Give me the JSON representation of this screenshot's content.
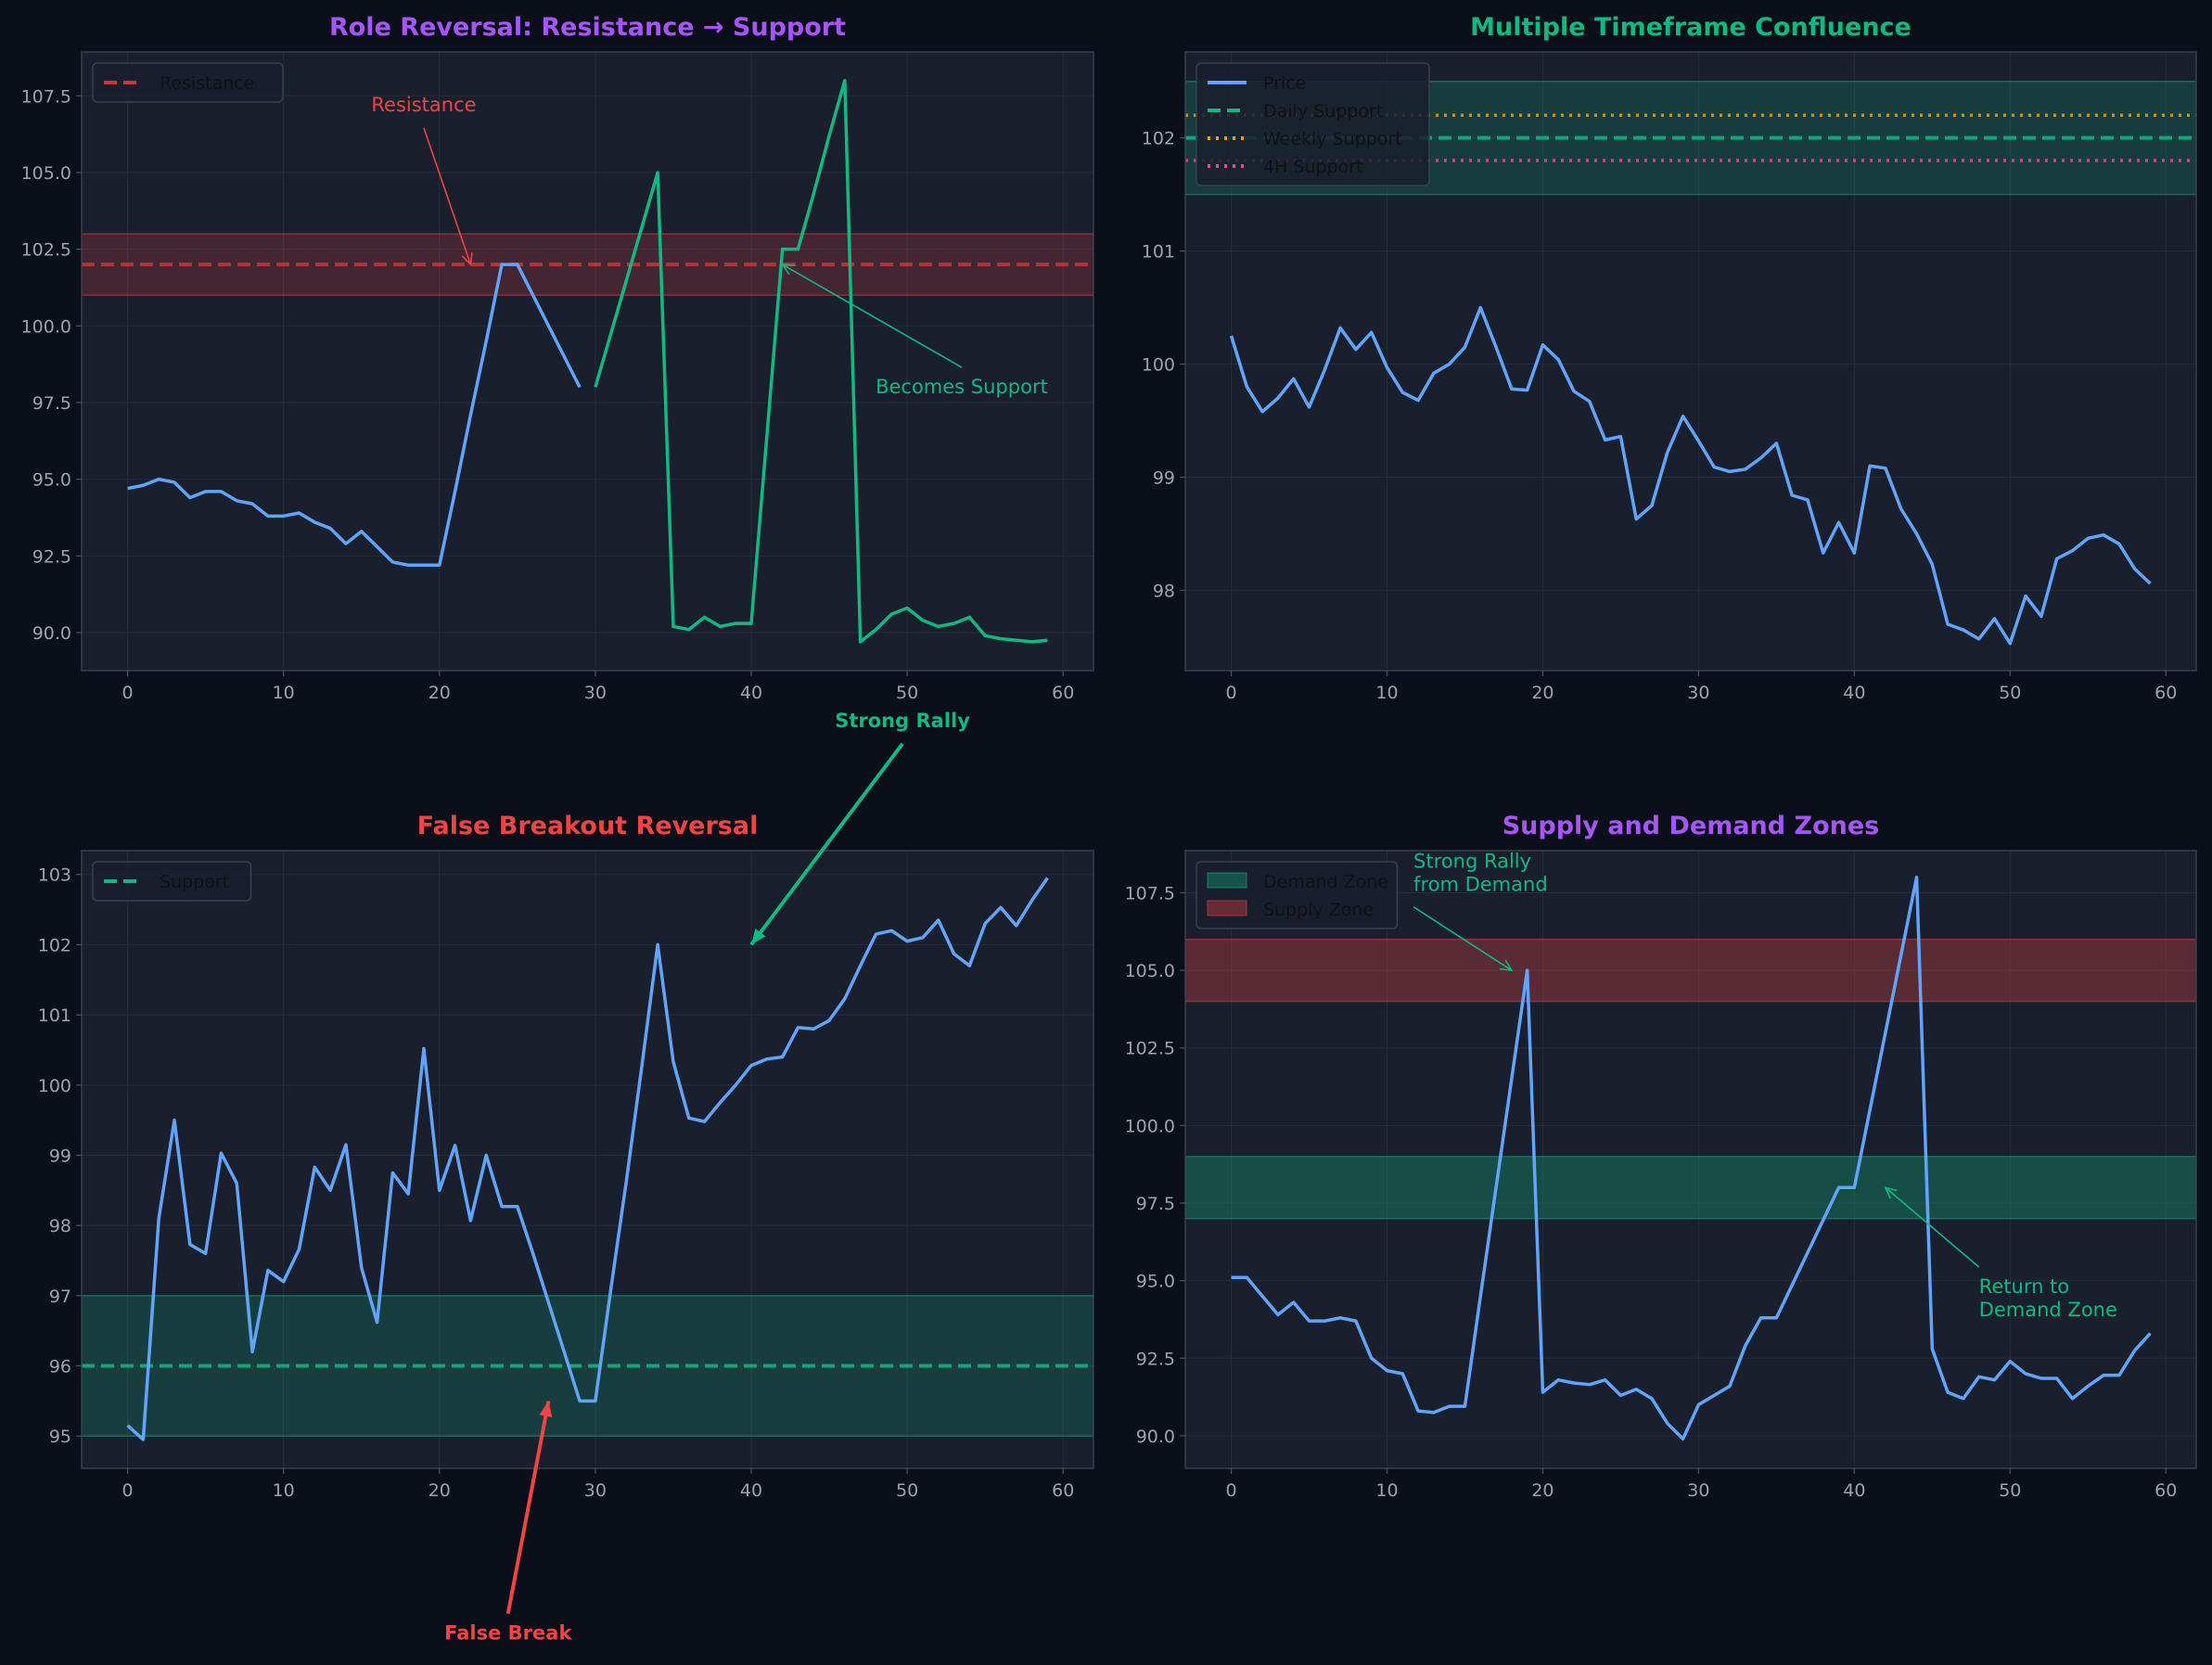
{
  "background": "#0b0f19",
  "axes_background": "#1a1f2e",
  "chart_data": [
    {
      "type": "line",
      "title": "Role Reversal: Resistance → Support",
      "title_color": "#a855f7",
      "xlim": [
        -2.95,
        61.95
      ],
      "ylim": [
        88.76,
        108.93
      ],
      "xticks": [
        0,
        10,
        20,
        30,
        40,
        50,
        60
      ],
      "yticks": [
        90.0,
        92.5,
        95.0,
        97.5,
        100.0,
        102.5,
        105.0,
        107.5
      ],
      "ytick_decimals": 1,
      "grid": true,
      "legend_placement": "top-left",
      "legend": [
        {
          "label": "Resistance",
          "style": "dashed",
          "color": "#c0393b"
        }
      ],
      "zones": [
        {
          "from": 101,
          "to": 103,
          "color": "#ef4444"
        }
      ],
      "hlines": [
        {
          "y": 102,
          "color": "#c0393b",
          "style": "dashed"
        }
      ],
      "series": [
        {
          "x_start": 0,
          "color": "#60a5fa",
          "values": [
            94.7,
            94.8,
            95.0,
            94.9,
            94.4,
            94.6,
            94.6,
            94.3,
            94.2,
            93.8,
            93.8,
            93.9,
            93.6,
            93.4,
            92.9,
            93.3,
            92.8,
            92.3,
            92.2,
            92.2,
            92.2,
            94.6,
            97.1,
            99.5,
            102.0,
            102.0,
            101.0,
            100.0,
            99.0,
            98.0
          ]
        },
        {
          "x_start": 30,
          "color": "#10b981",
          "values": [
            98.0,
            99.75,
            101.5,
            103.25,
            105.0,
            90.2,
            90.1,
            90.5,
            90.2,
            90.3,
            90.3,
            96.4,
            102.5,
            102.5,
            104.3,
            106.2,
            108.0,
            89.7,
            90.1,
            90.6,
            90.8,
            90.4,
            90.2,
            90.3,
            90.5,
            89.9,
            89.8,
            89.75,
            89.7,
            89.75
          ]
        }
      ],
      "annotations": [
        {
          "text": "Resistance",
          "color": "#ef4444",
          "text_xy": [
            19,
            107.0
          ],
          "arrow_to": [
            22,
            102.0
          ],
          "bold": false
        },
        {
          "text": "Becomes Support",
          "color": "#10b981",
          "text_xy": [
            53.5,
            97.8
          ],
          "arrow_to": [
            42,
            102.0
          ],
          "bold": false
        }
      ]
    },
    {
      "type": "line",
      "title": "Multiple Timeframe Confluence",
      "title_color": "#10b981",
      "xlim": [
        -2.95,
        61.95
      ],
      "ylim": [
        97.29,
        102.76
      ],
      "xticks": [
        0,
        10,
        20,
        30,
        40,
        50,
        60
      ],
      "yticks": [
        98,
        99,
        100,
        101,
        102
      ],
      "ytick_decimals": 0,
      "grid": true,
      "legend_placement": "top-left",
      "legend": [
        {
          "label": "Price",
          "style": "solid",
          "color": "#60a5fa"
        },
        {
          "label": "Daily Support",
          "style": "dashed",
          "color": "#10b981"
        },
        {
          "label": "Weekly Support",
          "style": "dotted",
          "color": "#f59e0b"
        },
        {
          "label": "4H Support",
          "style": "dotted",
          "color": "#ec4899"
        }
      ],
      "zones": [
        {
          "from": 101.5,
          "to": 102.5,
          "color": "#10b981"
        }
      ],
      "hlines": [
        {
          "y": 102.0,
          "color": "#10b981",
          "style": "dashed"
        },
        {
          "y": 102.2,
          "color": "#f59e0b",
          "style": "dotted"
        },
        {
          "y": 101.8,
          "color": "#ec4899",
          "style": "dotted"
        }
      ],
      "series": [
        {
          "x_start": 0,
          "color": "#60a5fa",
          "values": [
            100.25,
            99.8,
            99.58,
            99.7,
            99.87,
            99.62,
            99.95,
            100.32,
            100.13,
            100.28,
            99.97,
            99.75,
            99.68,
            99.92,
            100.0,
            100.15,
            100.5,
            100.15,
            99.78,
            99.77,
            100.17,
            100.04,
            99.76,
            99.67,
            99.33,
            99.36,
            98.63,
            98.75,
            99.22,
            99.54,
            99.32,
            99.09,
            99.05,
            99.07,
            99.17,
            99.3,
            98.84,
            98.8,
            98.33,
            98.6,
            98.33,
            99.1,
            99.08,
            98.72,
            98.5,
            98.23,
            97.7,
            97.65,
            97.57,
            97.75,
            97.53,
            97.95,
            97.77,
            98.28,
            98.35,
            98.46,
            98.49,
            98.41,
            98.19,
            98.06
          ]
        }
      ],
      "annotations": []
    },
    {
      "type": "line",
      "title": "False Breakout Reversal",
      "title_color": "#ef4444",
      "xlim": [
        -2.95,
        61.95
      ],
      "ylim": [
        94.54,
        103.34
      ],
      "xticks": [
        0,
        10,
        20,
        30,
        40,
        50,
        60
      ],
      "yticks": [
        95,
        96,
        97,
        98,
        99,
        100,
        101,
        102,
        103
      ],
      "ytick_decimals": 0,
      "grid": true,
      "legend_placement": "top-left",
      "legend": [
        {
          "label": "Support",
          "style": "dashed",
          "color": "#10b981"
        }
      ],
      "zones": [
        {
          "from": 95,
          "to": 97,
          "color": "#10b981"
        }
      ],
      "hlines": [
        {
          "y": 96,
          "color": "#10b981",
          "style": "dashed"
        }
      ],
      "series": [
        {
          "x_start": 0,
          "color": "#60a5fa",
          "values": [
            95.15,
            94.95,
            98.1,
            99.5,
            97.73,
            97.6,
            99.03,
            98.6,
            96.2,
            97.36,
            97.2,
            97.66,
            98.83,
            98.5,
            99.15,
            97.4,
            96.62,
            98.75,
            98.45,
            100.52,
            98.5,
            99.14,
            98.07,
            99.0,
            98.27,
            98.27,
            97.6,
            96.9,
            96.2,
            95.5,
            95.5,
            97.1,
            98.65,
            100.3,
            102.0,
            100.33,
            99.53,
            99.48,
            99.75,
            100.0,
            100.28,
            100.37,
            100.4,
            100.82,
            100.8,
            100.92,
            101.23,
            101.7,
            102.15,
            102.2,
            102.05,
            102.1,
            102.35,
            101.87,
            101.7,
            102.3,
            102.53,
            102.27,
            102.63,
            102.95
          ]
        }
      ],
      "annotations": [
        {
          "text": "Strong Rally",
          "color": "#10b981",
          "text_xy": [
            49.7,
            105.1
          ],
          "arrow_to": [
            40,
            102.0
          ],
          "bold": true,
          "thick": true
        },
        {
          "text": "False Break",
          "color": "#ef4444",
          "text_xy": [
            24.4,
            92.1
          ],
          "arrow_to": [
            27,
            95.5
          ],
          "bold": true,
          "thick": true
        }
      ]
    },
    {
      "type": "line",
      "title": "Supply and Demand Zones",
      "title_color": "#a855f7",
      "xlim": [
        -2.95,
        61.95
      ],
      "ylim": [
        88.95,
        108.86
      ],
      "xticks": [
        0,
        10,
        20,
        30,
        40,
        50,
        60
      ],
      "yticks": [
        90.0,
        92.5,
        95.0,
        97.5,
        100.0,
        102.5,
        105.0,
        107.5
      ],
      "ytick_decimals": 1,
      "grid": true,
      "legend_placement": "top-left",
      "legend": [
        {
          "label": "Demand Zone",
          "style": "patch",
          "color": "#10b981"
        },
        {
          "label": "Supply Zone",
          "style": "patch",
          "color": "#ef4444"
        }
      ],
      "zones": [
        {
          "from": 97,
          "to": 99,
          "color": "#10b981",
          "strong": true
        },
        {
          "from": 104,
          "to": 106,
          "color": "#ef4444",
          "strong": true
        }
      ],
      "hlines": [],
      "series": [
        {
          "x_start": 0,
          "color": "#60a5fa",
          "values": [
            95.1,
            95.1,
            94.5,
            93.9,
            94.3,
            93.7,
            93.7,
            93.8,
            93.7,
            92.5,
            92.1,
            92.0,
            90.8,
            90.75,
            90.95,
            90.95,
            94.5,
            98.0,
            101.5,
            105.0,
            91.4,
            91.8,
            91.7,
            91.65,
            91.8,
            91.3,
            91.5,
            91.2,
            90.4,
            89.9,
            91.0,
            91.3,
            91.6,
            92.9,
            93.8,
            93.8,
            94.85,
            95.9,
            96.95,
            98.0,
            98.0,
            100.5,
            103.0,
            105.5,
            108.0,
            92.8,
            91.4,
            91.2,
            91.9,
            91.8,
            92.4,
            92.0,
            91.85,
            91.85,
            91.2,
            91.6,
            91.95,
            91.95,
            92.75,
            93.3
          ]
        }
      ],
      "annotations": [
        {
          "text": "Strong Rally\nfrom Demand",
          "color": "#10b981",
          "text_xy": [
            11.7,
            108.3
          ],
          "arrow_to": [
            18,
            105.0
          ],
          "bold": false,
          "align": "center"
        },
        {
          "text": "Return to\nDemand Zone",
          "color": "#10b981",
          "text_xy": [
            48,
            94.6
          ],
          "arrow_to": [
            42,
            98.0
          ],
          "bold": false,
          "align": "start"
        }
      ]
    }
  ]
}
